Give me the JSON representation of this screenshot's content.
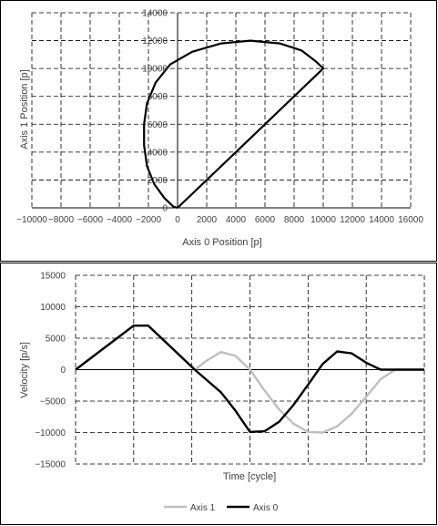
{
  "colors": {
    "axis_0": "#000000",
    "axis_1": "#bfbfbf",
    "grid": "#000000",
    "frame": "#000000"
  },
  "chart_data": [
    {
      "type": "scatter",
      "xlabel": "Axis 0 Position [p]",
      "ylabel": "Axis 1 Position [p]",
      "xlim": [
        -10000,
        16000
      ],
      "ylim": [
        0,
        14000
      ],
      "x_ticks": [
        -10000,
        -8000,
        -6000,
        -4000,
        -2000,
        0,
        2000,
        4000,
        6000,
        8000,
        10000,
        12000,
        14000,
        16000
      ],
      "x_tick_labels": [
        "−10000",
        "−8000",
        "−6000",
        "−4000",
        "−2000",
        "0",
        "2000",
        "4000",
        "6000",
        "8000",
        "10000",
        "12000",
        "14000",
        "16000"
      ],
      "y_ticks": [
        0,
        2000,
        4000,
        6000,
        8000,
        10000,
        12000,
        14000
      ],
      "y_tick_labels": [
        "0",
        "2000",
        "4000",
        "6000",
        "8000",
        "10000",
        "12000",
        "14000"
      ],
      "grid": true,
      "series": [
        {
          "points": [
            [
              0,
              0
            ],
            [
              2000,
              2000
            ],
            [
              4000,
              4000
            ],
            [
              6000,
              6000
            ],
            [
              8000,
              8000
            ],
            [
              10000,
              10000
            ],
            [
              9500,
              10500
            ],
            [
              8500,
              11300
            ],
            [
              7000,
              11800
            ],
            [
              5000,
              12000
            ],
            [
              3000,
              11800
            ],
            [
              1000,
              11200
            ],
            [
              -500,
              10300
            ],
            [
              -1500,
              9000
            ],
            [
              -2100,
              7500
            ],
            [
              -2300,
              6000
            ],
            [
              -2300,
              4500
            ],
            [
              -2100,
              3000
            ],
            [
              -1600,
              1700
            ],
            [
              -900,
              700
            ],
            [
              -300,
              100
            ],
            [
              0,
              0
            ]
          ]
        }
      ]
    },
    {
      "type": "line",
      "xlabel": "Time [cycle]",
      "ylabel": "Velocity [p/s]",
      "xlim": [
        0,
        12
      ],
      "ylim": [
        -15000,
        15000
      ],
      "y_ticks": [
        -15000,
        -10000,
        -5000,
        0,
        5000,
        10000,
        15000
      ],
      "y_tick_labels": [
        "−15000",
        "−10000",
        "−5000",
        "0",
        "5000",
        "10000",
        "15000"
      ],
      "grid": true,
      "legend_position": "bottom",
      "series": [
        {
          "name": "Axis 1",
          "x": [
            0,
            2,
            2.5,
            4.1,
            4.5,
            5,
            5.5,
            6,
            6.5,
            7,
            7.5,
            8,
            8.5,
            9,
            9.5,
            10,
            10.5,
            11,
            11.5,
            12
          ],
          "y": [
            0,
            7000,
            7000,
            0,
            1400,
            2800,
            2200,
            0,
            -3300,
            -6300,
            -8600,
            -9900,
            -10000,
            -9000,
            -7000,
            -4300,
            -1500,
            0,
            0,
            0
          ]
        },
        {
          "name": "Axis 0",
          "x": [
            0,
            2,
            2.5,
            4.1,
            4.5,
            5,
            5.5,
            6,
            6.5,
            7,
            7.5,
            8,
            8.5,
            9,
            9.5,
            10,
            10.5,
            11,
            11.5,
            12
          ],
          "y": [
            0,
            7000,
            7000,
            0,
            -1600,
            -3600,
            -6500,
            -9900,
            -9800,
            -8300,
            -5600,
            -2400,
            900,
            2900,
            2600,
            1100,
            0,
            0,
            0,
            0
          ]
        }
      ]
    }
  ]
}
